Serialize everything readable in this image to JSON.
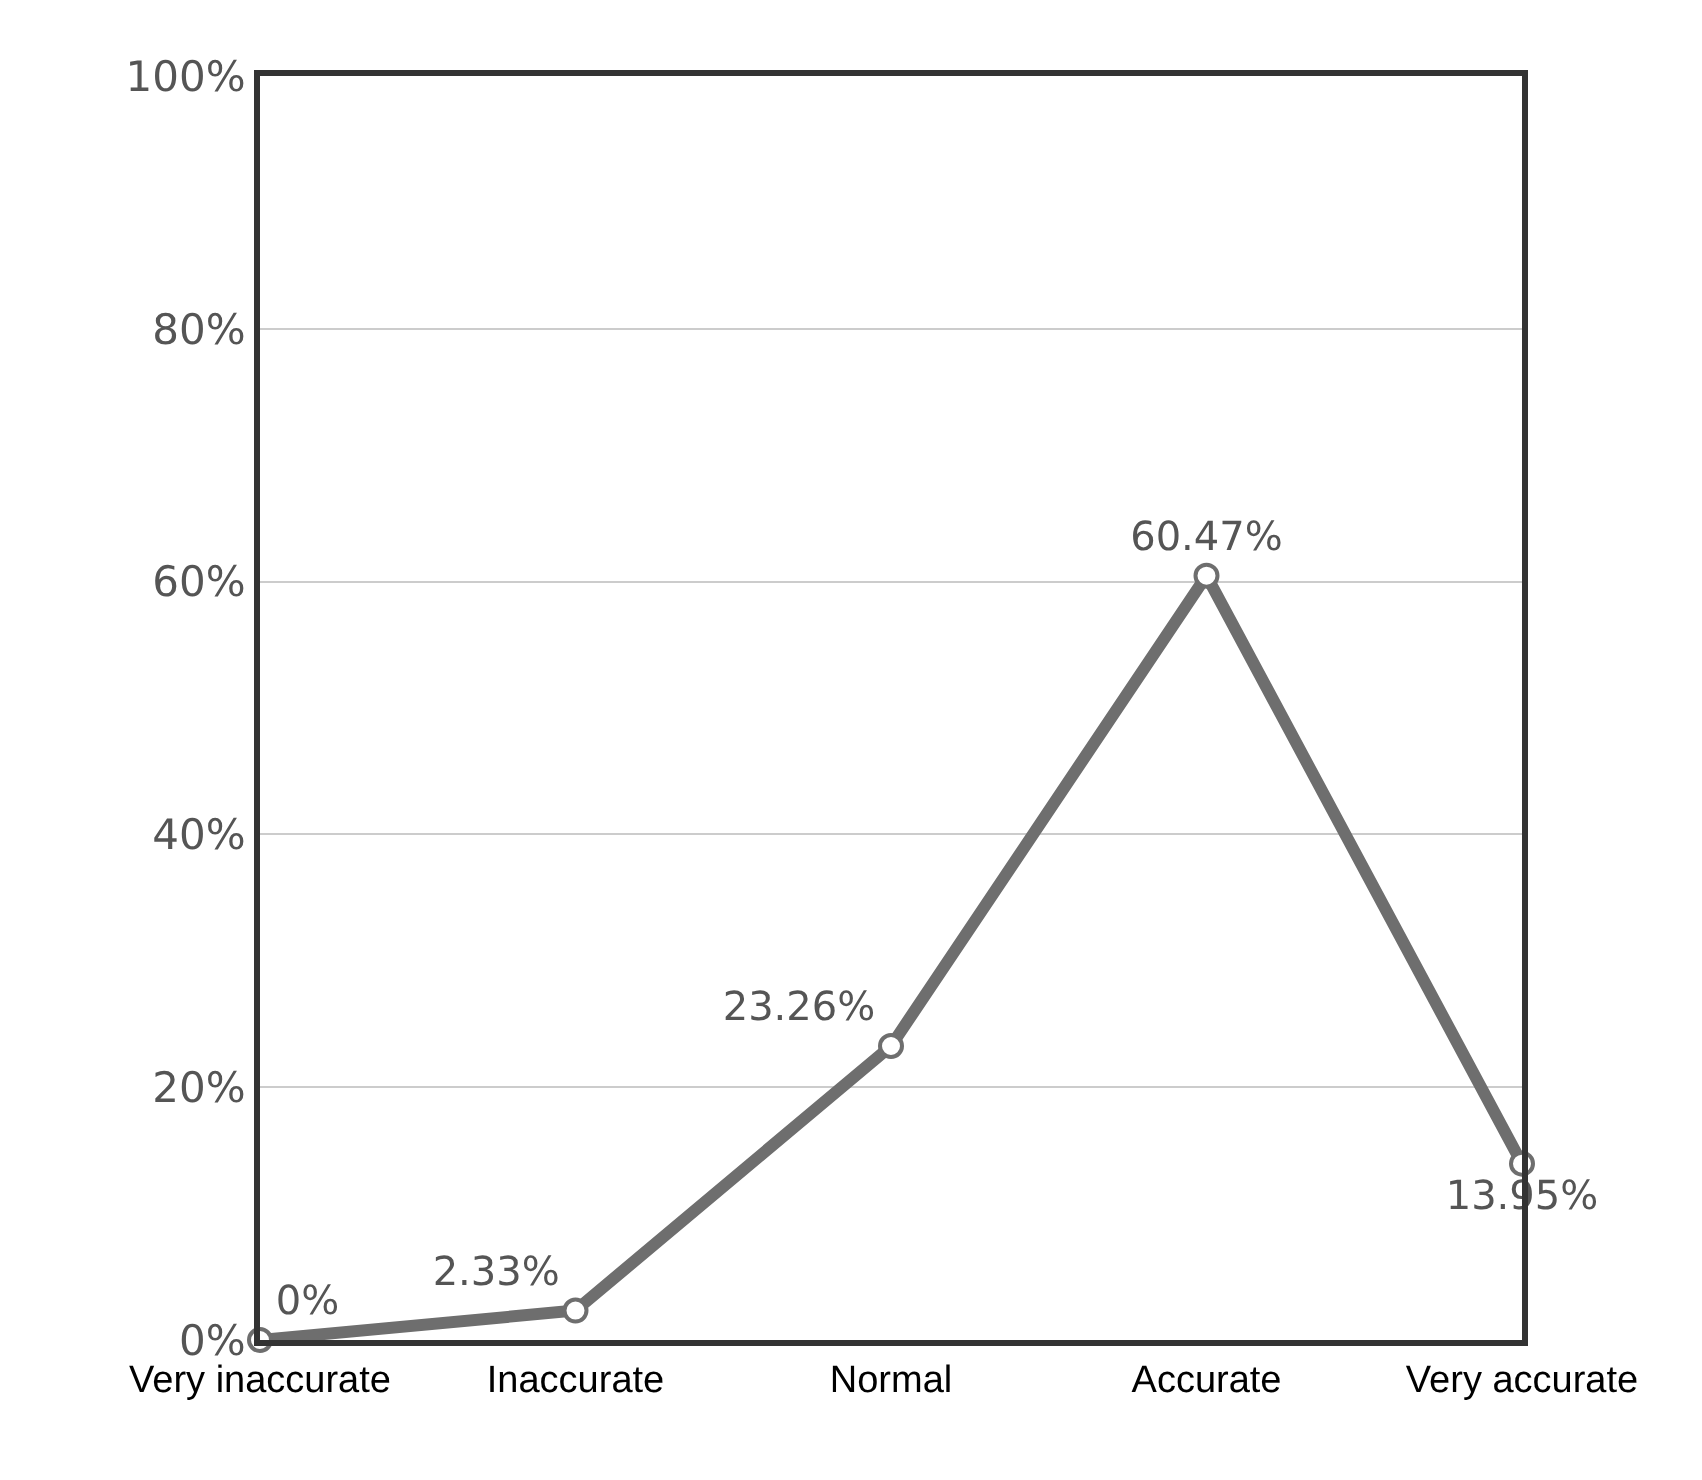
{
  "chart_data": {
    "type": "line",
    "categories": [
      "Very inaccurate",
      "Inaccurate",
      "Normal",
      "Accurate",
      "Very accurate"
    ],
    "values": [
      0,
      2.33,
      23.26,
      60.47,
      13.95
    ],
    "value_labels": [
      "0%",
      "2.33%",
      "23.26%",
      "60.47%",
      "13.95%"
    ],
    "color": "#6e6e6e",
    "marker": "circle",
    "line_style": "solid",
    "ylim": [
      0,
      100
    ],
    "yticks": [
      {
        "value": 0,
        "label": "0%"
      },
      {
        "value": 20,
        "label": "20%"
      },
      {
        "value": 40,
        "label": "40%"
      },
      {
        "value": 60,
        "label": "60%"
      },
      {
        "value": 80,
        "label": "80%"
      },
      {
        "value": 100,
        "label": "100%"
      }
    ],
    "grid": "y",
    "legend": false
  }
}
